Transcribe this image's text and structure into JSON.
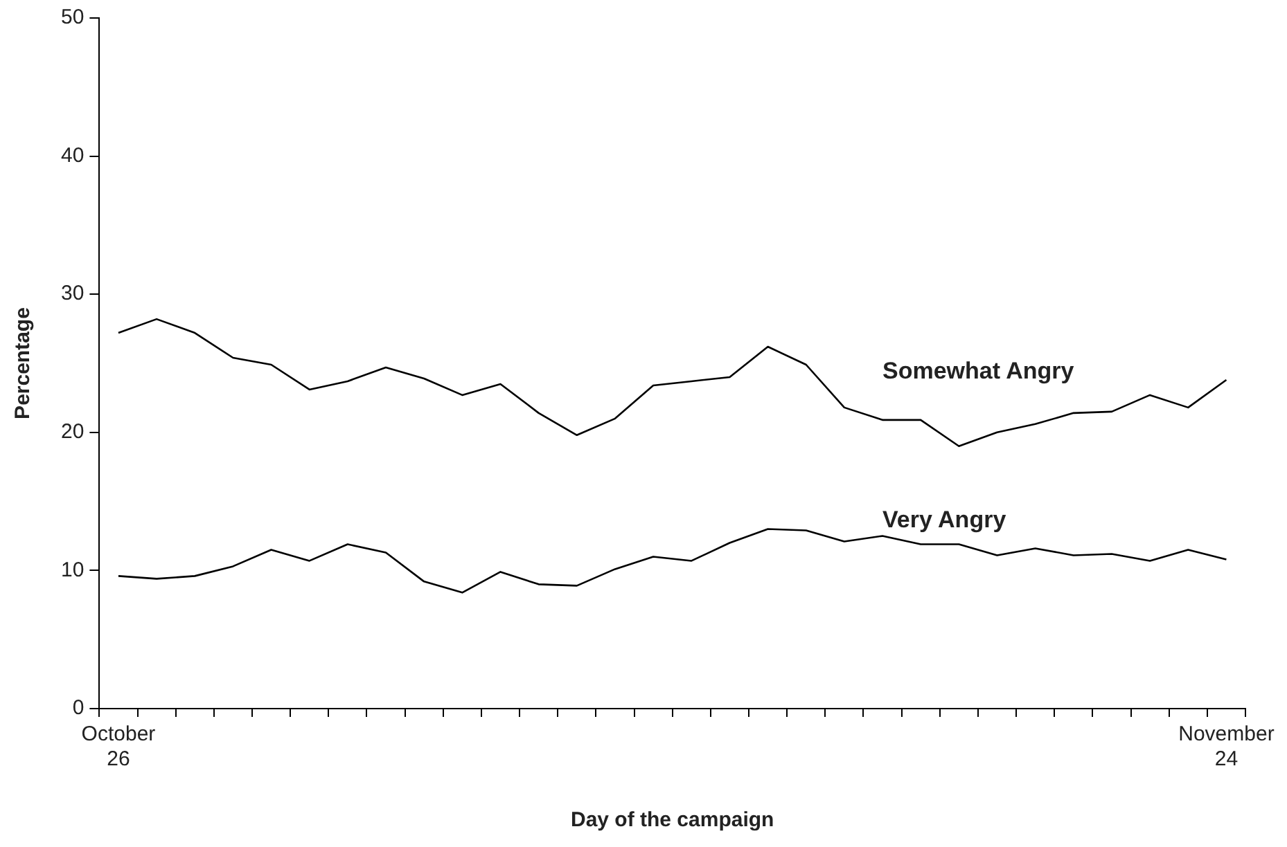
{
  "chart_data": {
    "type": "line",
    "xlabel": "Day of the campaign",
    "ylabel": "Percentage",
    "categories": [
      "October 26",
      null,
      null,
      null,
      null,
      null,
      null,
      null,
      null,
      null,
      null,
      null,
      null,
      null,
      null,
      null,
      null,
      null,
      null,
      null,
      null,
      null,
      null,
      null,
      null,
      null,
      null,
      null,
      null,
      "November 24"
    ],
    "series": [
      {
        "name": "Somewhat Angry",
        "color": "#000000",
        "values": [
          27.2,
          28.2,
          27.2,
          25.4,
          24.9,
          23.1,
          23.7,
          24.7,
          23.9,
          22.7,
          23.5,
          21.4,
          19.8,
          21.0,
          23.4,
          23.7,
          24.0,
          26.2,
          24.9,
          21.8,
          20.9,
          20.9,
          19.0,
          20.0,
          20.6,
          21.4,
          21.5,
          22.7,
          21.8,
          23.8
        ]
      },
      {
        "name": "Very Angry",
        "color": "#000000",
        "values": [
          9.6,
          9.4,
          9.6,
          10.3,
          11.5,
          10.7,
          11.9,
          11.3,
          9.2,
          8.4,
          9.9,
          9.0,
          8.9,
          10.1,
          11.0,
          10.7,
          12.0,
          13.0,
          12.9,
          12.1,
          12.5,
          11.9,
          11.9,
          11.1,
          11.6,
          11.1,
          11.2,
          10.7,
          11.5,
          10.8
        ]
      }
    ],
    "ylim": [
      0,
      50
    ],
    "yticks": [
      0,
      10,
      20,
      30,
      40,
      50
    ],
    "grid": false,
    "legend": false,
    "marker": "none",
    "line_style": "solid"
  }
}
